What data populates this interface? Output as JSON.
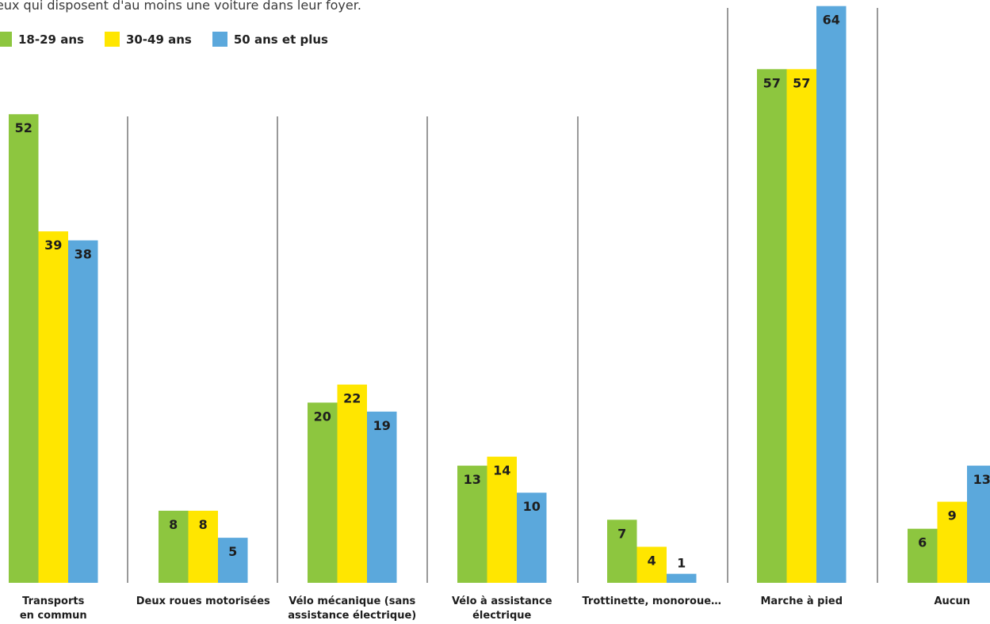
{
  "subtitle": "eux qui disposent d'au moins une voiture dans leur foyer.",
  "chart_data": {
    "type": "bar",
    "categories": [
      "Transports en commun",
      "Deux roues motorisées",
      "Vélo mécanique (sans assistance électrique)",
      "Vélo à assistance électrique",
      "Trottinette, monoroue…",
      "Marche à pied",
      "Aucun"
    ],
    "series": [
      {
        "name": "18-29 ans",
        "color": "#8dc63f",
        "values": [
          52,
          8,
          20,
          13,
          7,
          57,
          6
        ]
      },
      {
        "name": "30-49 ans",
        "color": "#ffe600",
        "values": [
          39,
          8,
          22,
          14,
          4,
          57,
          9
        ]
      },
      {
        "name": "50 ans et plus",
        "color": "#5ba8dc",
        "values": [
          38,
          5,
          19,
          10,
          1,
          64,
          13
        ]
      }
    ],
    "ylim": [
      0,
      64
    ],
    "grid": false,
    "legend_position": "top-left",
    "data_labels": true
  }
}
